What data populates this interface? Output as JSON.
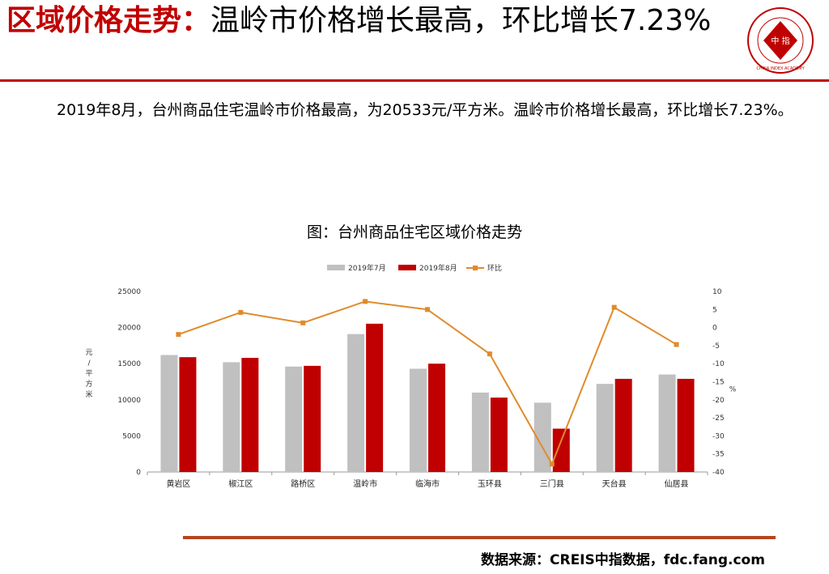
{
  "header": {
    "title_prefix": "区域价格走势：",
    "title_main": "温岭市价格增长最高，环比增长7.23%",
    "logo_text": "中 指",
    "logo_ring_text": "CHINA INDEX ACADEMY"
  },
  "body": {
    "paragraph": "2019年8月，台州商品住宅温岭市价格最高，为20533元/平方米。温岭市价格增长最高，环比增长7.23%。"
  },
  "chart_title": "图：台州商品住宅区域价格走势",
  "chart_data": {
    "type": "bar",
    "categories": [
      "黄岩区",
      "椒江区",
      "路桥区",
      "温岭市",
      "临海市",
      "玉环县",
      "三门县",
      "天台县",
      "仙居县"
    ],
    "series": [
      {
        "name": "2019年7月",
        "type": "bar",
        "axis": "left",
        "color": "#c0c0c0",
        "values": [
          16200,
          15200,
          14600,
          19100,
          14300,
          11000,
          9600,
          12200,
          13500
        ]
      },
      {
        "name": "2019年8月",
        "type": "bar",
        "axis": "left",
        "color": "#c00000",
        "values": [
          15900,
          15800,
          14700,
          20533,
          15000,
          10300,
          6000,
          12900,
          12900
        ]
      },
      {
        "name": "环比",
        "type": "line",
        "axis": "right",
        "color": "#e08b2b",
        "values": [
          -1.9,
          4.2,
          1.3,
          7.23,
          5.0,
          -7.3,
          -37.8,
          5.6,
          -4.7
        ]
      }
    ],
    "ylabel_left": "元/平方米",
    "ylabel_right": "%",
    "ylim_left": [
      0,
      25000
    ],
    "yticks_left": [
      0,
      5000,
      10000,
      15000,
      20000,
      25000
    ],
    "ylim_right": [
      -40,
      10
    ],
    "yticks_right": [
      10,
      5,
      0,
      -5,
      -10,
      -15,
      -20,
      -25,
      -30,
      -35,
      -40
    ],
    "legend_position": "top-center",
    "grid": false
  },
  "footer": {
    "source": "数据来源：CREIS中指数据，fdc.fang.com"
  }
}
